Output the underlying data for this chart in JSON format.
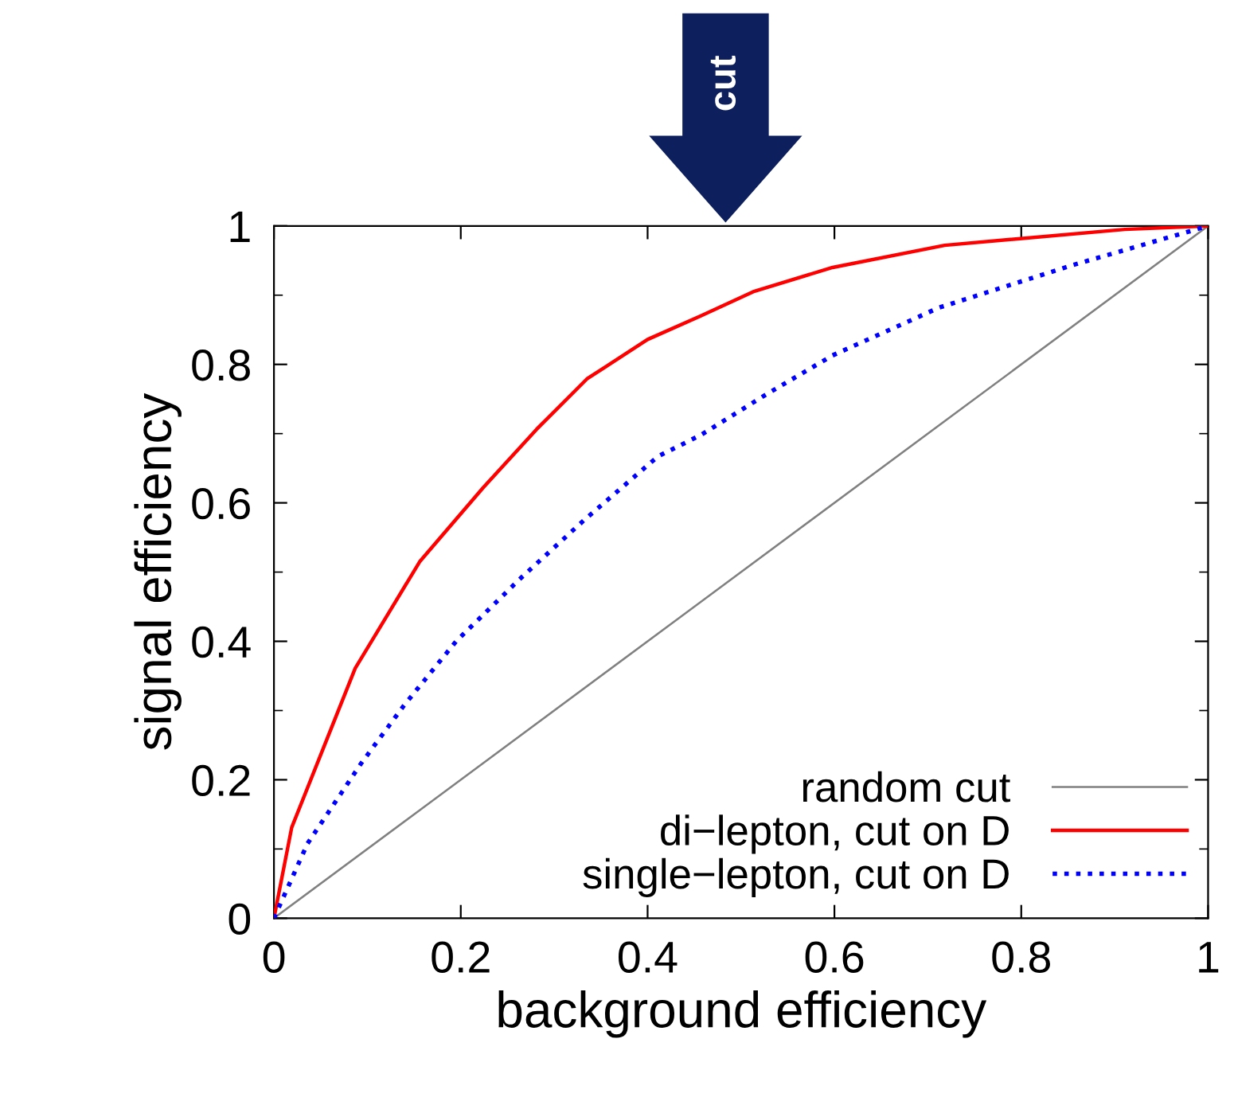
{
  "chart_data": {
    "type": "line",
    "xlabel": "background efficiency",
    "ylabel": "signal efficiency",
    "xlim": [
      0,
      1
    ],
    "ylim": [
      0,
      1
    ],
    "xticks": [
      0,
      0.2,
      0.4,
      0.6,
      0.8,
      1
    ],
    "yticks": [
      0,
      0.2,
      0.4,
      0.6,
      0.8,
      1
    ],
    "legend": "bottom right",
    "grid": false,
    "annotations": [
      "cut"
    ],
    "series": [
      {
        "name": "random cut",
        "color": "#808080",
        "line_style": "solid",
        "x": [
          0,
          1
        ],
        "values": [
          0,
          1
        ]
      },
      {
        "name": "di−lepton, cut on D",
        "color": "#ff0000",
        "line_style": "solid",
        "x": [
          0,
          0.019,
          0.053,
          0.087,
          0.156,
          0.224,
          0.281,
          0.335,
          0.4,
          0.457,
          0.513,
          0.598,
          0.718,
          0.911,
          1
        ],
        "values": [
          0,
          0.131,
          0.246,
          0.361,
          0.515,
          0.622,
          0.706,
          0.779,
          0.836,
          0.87,
          0.905,
          0.94,
          0.972,
          0.995,
          1
        ]
      },
      {
        "name": "single−lepton, cut on D",
        "color": "#0000ff",
        "line_style": "dotted",
        "x": [
          0,
          0.036,
          0.093,
          0.139,
          0.195,
          0.264,
          0.332,
          0.411,
          0.457,
          0.525,
          0.598,
          0.712,
          0.854,
          1
        ],
        "values": [
          0,
          0.108,
          0.223,
          0.307,
          0.4,
          0.491,
          0.575,
          0.667,
          0.698,
          0.755,
          0.813,
          0.882,
          0.943,
          1
        ]
      }
    ]
  }
}
